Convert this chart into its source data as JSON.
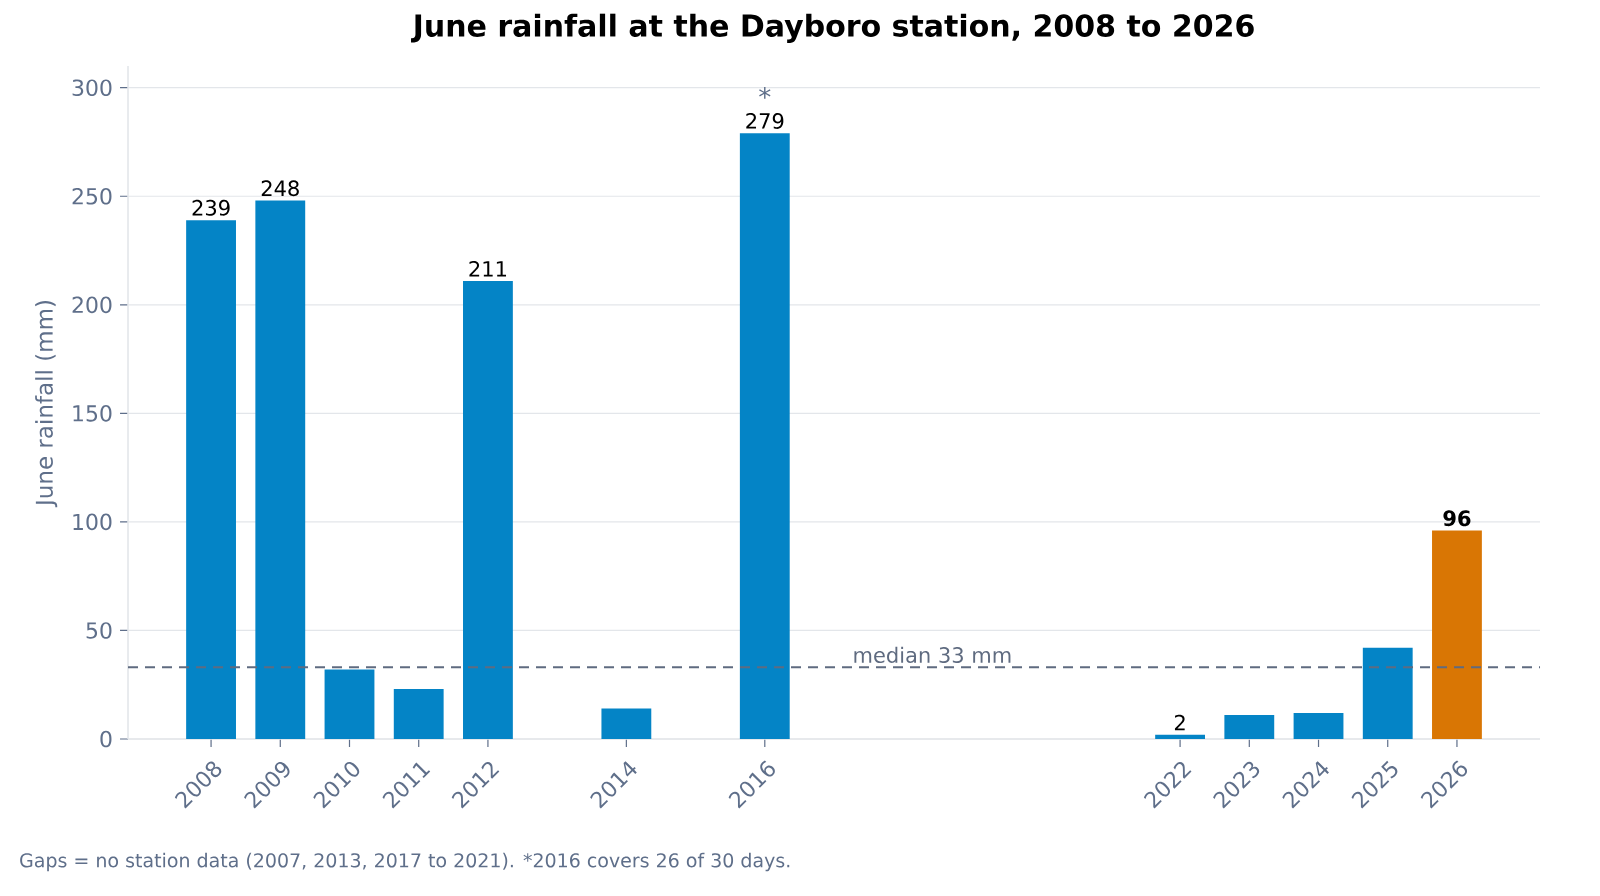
{
  "chart_data": {
    "type": "bar",
    "title": "June rainfall at the Dayboro station, 2008 to 2026",
    "ylabel": "June rainfall (mm)",
    "x": [
      2008,
      2009,
      2010,
      2011,
      2012,
      2014,
      2016,
      2022,
      2023,
      2024,
      2025,
      2026
    ],
    "values": [
      239,
      248,
      32,
      23,
      211,
      14,
      279,
      2,
      11,
      12,
      42,
      96
    ],
    "colors": [
      "#0484c6",
      "#0484c6",
      "#0484c6",
      "#0484c6",
      "#0484c6",
      "#0484c6",
      "#0484c6",
      "#0484c6",
      "#0484c6",
      "#0484c6",
      "#0484c6",
      "#d97604"
    ],
    "value_labels": [
      "239",
      "248",
      null,
      null,
      "211",
      null,
      "279",
      "2",
      null,
      null,
      null,
      "**96**"
    ],
    "xlim": [
      2006.8,
      2027.2
    ],
    "xticks": [
      2008,
      2009,
      2010,
      2011,
      2012,
      2014,
      2016,
      2022,
      2023,
      2024,
      2025,
      2026
    ],
    "ylim": [
      0,
      310
    ],
    "yticks": [
      0,
      50,
      100,
      150,
      200,
      250,
      300
    ],
    "grid": "y",
    "ref_lines": [
      {
        "axis": "y",
        "value": 33,
        "label": "median 33 mm",
        "color": "#5f6b80",
        "line_style": "dashed"
      }
    ],
    "annotations": [
      {
        "text": "*",
        "x": 2016,
        "y": 279
      },
      "Gaps = no station data (2007, 2013, 2017 to 2021). *2016 covers 26 of 30 days."
    ]
  }
}
